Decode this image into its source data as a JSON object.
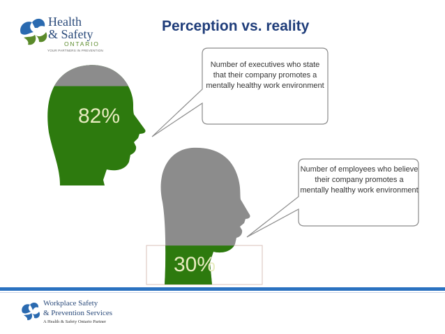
{
  "title": "Perception vs. reality",
  "logo_top": {
    "line1": "Health",
    "line2": "& Safety",
    "line3": "ONTARIO",
    "tagline": "YOUR PARTNERS IN PREVENTION",
    "icon": "maple-leaf-swirl-icon",
    "colors": {
      "blue": "#2a4a7a",
      "green": "#5a8a2a"
    }
  },
  "executives": {
    "percent_label": "82%",
    "percent_value": 0.82,
    "caption": "Number of executives who state that their company promotes a mentally healthy work environment"
  },
  "employees": {
    "percent_label": "30%",
    "percent_value": 0.3,
    "caption": "Number of employees who believe their company promotes a mentally healthy work environment"
  },
  "colors": {
    "head_fill_green": "#2d7a0e",
    "head_fill_gray": "#8c8c8c",
    "title_blue": "#1f3d7a",
    "footer_bar": "#2a72c0"
  },
  "footer": {
    "line1": "Workplace Safety",
    "line2": "& Prevention Services",
    "line3": "A Health & Safety Ontario Partner",
    "icon": "maple-leaf-swirl-icon"
  }
}
